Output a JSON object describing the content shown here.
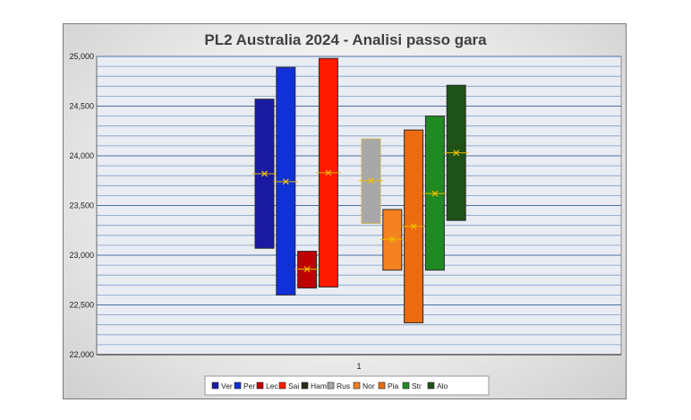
{
  "chart_data": {
    "type": "bar",
    "title": "PL2 Australia 2024 - Analisi passo gara",
    "xlabel": "",
    "ylabel": "",
    "categories": [
      "1"
    ],
    "ylim": [
      22000,
      25000
    ],
    "y_ticks": [
      "22,000",
      "22,500",
      "23,000",
      "23,500",
      "24,000",
      "24,500",
      "25,000"
    ],
    "grid": true,
    "legend_position": "bottom",
    "series": [
      {
        "name": "Ver",
        "color": "#1a1aa0",
        "low": 23070,
        "high": 24570,
        "mean": 23820
      },
      {
        "name": "Per",
        "color": "#1030d8",
        "low": 22600,
        "high": 24890,
        "mean": 23740
      },
      {
        "name": "Lec",
        "color": "#c00000",
        "low": 22670,
        "high": 23040,
        "mean": 22860
      },
      {
        "name": "Sai",
        "color": "#ff1a00",
        "low": 22680,
        "high": 24980,
        "mean": 23830
      },
      {
        "name": "Ham",
        "color": "#2a2a1a",
        "low": null,
        "high": null,
        "mean": null
      },
      {
        "name": "Rus",
        "color": "#a8a8a8",
        "low": 23320,
        "high": 24170,
        "mean": 23750
      },
      {
        "name": "Nor",
        "color": "#f58220",
        "low": 22850,
        "high": 23460,
        "mean": 23160
      },
      {
        "name": "Pia",
        "color": "#ea6b10",
        "low": 22320,
        "high": 24260,
        "mean": 23290
      },
      {
        "name": "Str",
        "color": "#1f8a22",
        "low": 22850,
        "high": 24400,
        "mean": 23620
      },
      {
        "name": "Alo",
        "color": "#1e5218",
        "low": 23350,
        "high": 24710,
        "mean": 24030
      }
    ]
  }
}
